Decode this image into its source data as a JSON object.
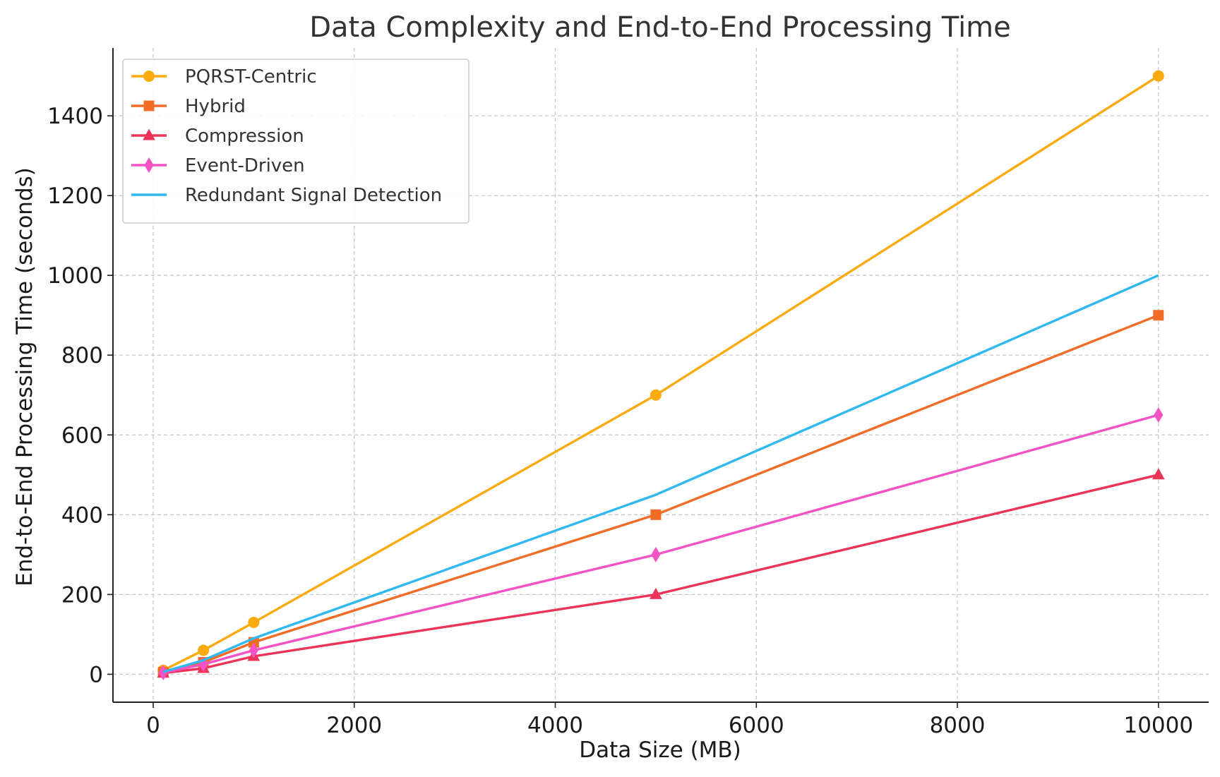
{
  "chart_data": {
    "type": "line",
    "title": "Data Complexity and End-to-End Processing Time",
    "xlabel": "Data Size (MB)",
    "ylabel": "End-to-End Processing Time (seconds)",
    "x": [
      100,
      500,
      1000,
      5000,
      10000
    ],
    "xlim": [
      -400,
      10500
    ],
    "ylim": [
      -70,
      1570
    ],
    "xticks": [
      0,
      2000,
      4000,
      6000,
      8000,
      10000
    ],
    "yticks": [
      0,
      200,
      400,
      600,
      800,
      1000,
      1200,
      1400
    ],
    "grid": true,
    "legend_position": "top-left",
    "series": [
      {
        "name": "PQRST-Centric",
        "color": "#f9ab11",
        "marker": "circle",
        "values": [
          10,
          60,
          130,
          700,
          1500
        ]
      },
      {
        "name": "Hybrid",
        "color": "#f16c26",
        "marker": "square",
        "values": [
          5,
          30,
          80,
          400,
          900
        ]
      },
      {
        "name": "Compression",
        "color": "#eb3457",
        "marker": "triangle",
        "values": [
          3,
          15,
          45,
          200,
          500
        ]
      },
      {
        "name": "Event-Driven",
        "color": "#f453c5",
        "marker": "diamond",
        "values": [
          4,
          25,
          60,
          300,
          650
        ]
      },
      {
        "name": "Redundant Signal Detection",
        "color": "#2fb9f0",
        "marker": "none",
        "values": [
          6,
          35,
          90,
          450,
          1000
        ]
      }
    ]
  }
}
